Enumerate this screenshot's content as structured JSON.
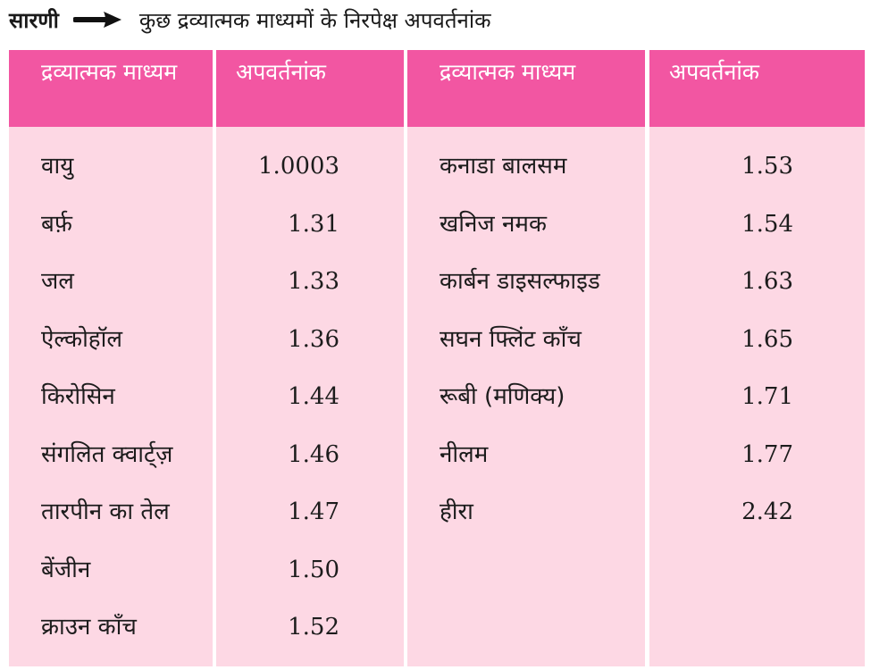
{
  "caption": {
    "label": "सारणी",
    "arrow_icon": "right-arrow-icon",
    "title": "कुछ द्रव्यात्मक माध्यमों के निरपेक्ष अपवर्तनांक"
  },
  "table": {
    "headers": {
      "medium_1": "द्रव्यात्मक माध्यम",
      "ri_1": "अपवर्तनांक",
      "medium_2": "द्रव्यात्मक माध्यम",
      "ri_2": "अपवर्तनांक"
    },
    "left_rows": [
      {
        "medium": "वायु",
        "index": "1.0003"
      },
      {
        "medium": "बर्फ़",
        "index": "1.31"
      },
      {
        "medium": "जल",
        "index": "1.33"
      },
      {
        "medium": "ऐल्कोहॉल",
        "index": "1.36"
      },
      {
        "medium": "किरोसिन",
        "index": "1.44"
      },
      {
        "medium": "संगलित क्वार्ट्ज़",
        "index": "1.46"
      },
      {
        "medium": "तारपीन का तेल",
        "index": "1.47"
      },
      {
        "medium": "बेंजीन",
        "index": "1.50"
      },
      {
        "medium": "क्राउन काँच",
        "index": "1.52"
      }
    ],
    "right_rows": [
      {
        "medium": "कनाडा बालसम",
        "index": "1.53"
      },
      {
        "medium": "खनिज नमक",
        "index": "1.54"
      },
      {
        "medium": "कार्बन डाइसल्फाइड",
        "index": "1.63"
      },
      {
        "medium": "सघन फ्लिंट काँच",
        "index": "1.65"
      },
      {
        "medium": "रूबी (मणिक्य)",
        "index": "1.71"
      },
      {
        "medium": "नीलम",
        "index": "1.77"
      },
      {
        "medium": "हीरा",
        "index": "2.42"
      }
    ]
  },
  "colors": {
    "header_bg": "#f256a2",
    "cell_bg": "#fdd8e4",
    "header_text": "#ffffff",
    "body_text": "#1c1c1c"
  }
}
